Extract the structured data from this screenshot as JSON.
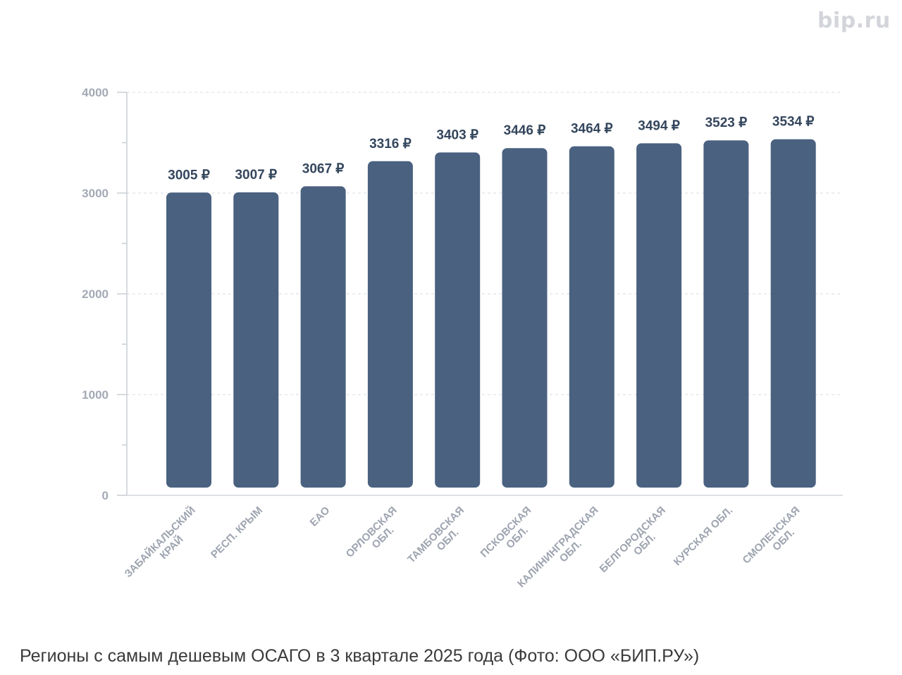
{
  "watermark": "bip.ru",
  "caption": "Регионы с самым дешевым ОСАГО в 3 квартале 2025 года (Фото: ООО «БИП.РУ»)",
  "colors": {
    "bar": "#4a6180",
    "data_label": "#34465d",
    "axis_label": "#a3a9b5",
    "grid": "#dfe2e7"
  },
  "chart_data": {
    "type": "bar",
    "categories": [
      [
        "ЗАБАЙКАЛЬСКИЙ",
        "КРАЙ"
      ],
      [
        "РЕСП. КРЫМ"
      ],
      [
        "ЕАО"
      ],
      [
        "ОРЛОВСКАЯ",
        "ОБЛ."
      ],
      [
        "ТАМБОВСКАЯ",
        "ОБЛ."
      ],
      [
        "ПСКОВСКАЯ",
        "ОБЛ."
      ],
      [
        "КАЛИНИНГРАДСКАЯ",
        "ОБЛ."
      ],
      [
        "БЕЛГОРОДСКАЯ",
        "ОБЛ."
      ],
      [
        "КУРСКАЯ ОБЛ."
      ],
      [
        "СМОЛЕНСКАЯ",
        "ОБЛ."
      ]
    ],
    "values": [
      3005,
      3007,
      3067,
      3316,
      3403,
      3446,
      3464,
      3494,
      3523,
      3534
    ],
    "data_labels": [
      "3005 ₽",
      "3007 ₽",
      "3067 ₽",
      "3316 ₽",
      "3403 ₽",
      "3446 ₽",
      "3464 ₽",
      "3494 ₽",
      "3523 ₽",
      "3534 ₽"
    ],
    "yticks": [
      "0",
      "1000",
      "2000",
      "3000",
      "4000"
    ],
    "ylim": [
      0,
      4000
    ],
    "grid": true,
    "title": "",
    "xlabel": "",
    "ylabel": ""
  }
}
